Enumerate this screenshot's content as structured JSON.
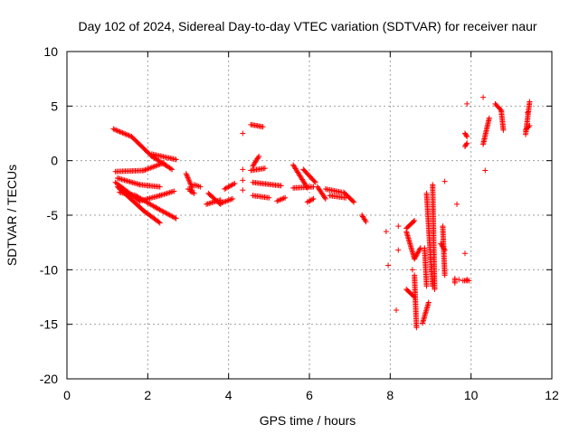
{
  "chart_data": {
    "type": "scatter",
    "title": "Day 102 of 2024, Sidereal Day-to-day VTEC variation (SDTVAR) for receiver naur",
    "xlabel": "GPS time / hours",
    "ylabel": "SDTVAR / TECUs",
    "xlim": [
      0,
      12
    ],
    "ylim": [
      -20,
      10
    ],
    "xticks": [
      "0",
      "2",
      "4",
      "6",
      "8",
      "10",
      "12"
    ],
    "yticks": [
      "-20",
      "-15",
      "-10",
      "-5",
      "0",
      "5",
      "10"
    ],
    "grid": true,
    "marker": "+",
    "color": "#ff0000",
    "series_segments": [
      {
        "x0": 1.15,
        "y0": 2.9,
        "x1": 1.6,
        "y1": 2.2
      },
      {
        "x0": 1.6,
        "y0": 2.2,
        "x1": 2.1,
        "y1": 0.4
      },
      {
        "x0": 2.1,
        "y0": 0.4,
        "x1": 2.6,
        "y1": -0.8
      },
      {
        "x0": 2.1,
        "y0": 0.6,
        "x1": 2.7,
        "y1": 0.1
      },
      {
        "x0": 1.2,
        "y0": -1.0,
        "x1": 1.9,
        "y1": -0.9
      },
      {
        "x0": 1.9,
        "y0": -0.9,
        "x1": 2.4,
        "y1": -0.2
      },
      {
        "x0": 1.25,
        "y0": -1.6,
        "x1": 1.8,
        "y1": -2.2
      },
      {
        "x0": 1.8,
        "y0": -2.2,
        "x1": 2.3,
        "y1": -2.4
      },
      {
        "x0": 1.2,
        "y0": -2.0,
        "x1": 1.8,
        "y1": -3.7
      },
      {
        "x0": 1.8,
        "y0": -3.7,
        "x1": 2.3,
        "y1": -3.2
      },
      {
        "x0": 2.3,
        "y0": -3.2,
        "x1": 2.65,
        "y1": -2.8
      },
      {
        "x0": 1.25,
        "y0": -2.4,
        "x1": 1.9,
        "y1": -4.6
      },
      {
        "x0": 1.9,
        "y0": -4.6,
        "x1": 2.3,
        "y1": -5.7
      },
      {
        "x0": 1.3,
        "y0": -2.9,
        "x1": 1.7,
        "y1": -3.2
      },
      {
        "x0": 1.7,
        "y0": -3.2,
        "x1": 2.2,
        "y1": -4.3
      },
      {
        "x0": 2.2,
        "y0": -4.3,
        "x1": 2.7,
        "y1": -5.3
      },
      {
        "x0": 2.95,
        "y0": -1.2,
        "x1": 3.1,
        "y1": -2.5
      },
      {
        "x0": 3.0,
        "y0": -2.6,
        "x1": 3.1,
        "y1": -2.7
      },
      {
        "x0": 3.15,
        "y0": -2.2,
        "x1": 3.3,
        "y1": -2.4
      },
      {
        "x0": 3.05,
        "y0": -2.8,
        "x1": 3.15,
        "y1": -3.0
      },
      {
        "x0": 3.5,
        "y0": -3.0,
        "x1": 3.8,
        "y1": -4.0
      },
      {
        "x0": 3.45,
        "y0": -4.0,
        "x1": 3.8,
        "y1": -3.6
      },
      {
        "x0": 3.9,
        "y0": -2.6,
        "x1": 4.15,
        "y1": -2.1
      },
      {
        "x0": 3.8,
        "y0": -3.9,
        "x1": 4.1,
        "y1": -3.5
      },
      {
        "x0": 4.55,
        "y0": 3.3,
        "x1": 4.85,
        "y1": 3.1
      },
      {
        "x0": 4.55,
        "y0": -0.9,
        "x1": 4.9,
        "y1": -0.7
      },
      {
        "x0": 4.6,
        "y0": -0.5,
        "x1": 4.75,
        "y1": 0.4
      },
      {
        "x0": 4.6,
        "y0": -3.2,
        "x1": 5.0,
        "y1": -3.4
      },
      {
        "x0": 4.6,
        "y0": -2.0,
        "x1": 5.3,
        "y1": -2.3
      },
      {
        "x0": 5.2,
        "y0": -3.7,
        "x1": 5.4,
        "y1": -3.4
      },
      {
        "x0": 5.6,
        "y0": -0.4,
        "x1": 5.95,
        "y1": -2.5
      },
      {
        "x0": 5.85,
        "y0": -0.8,
        "x1": 6.15,
        "y1": -2.0
      },
      {
        "x0": 5.95,
        "y0": -3.8,
        "x1": 6.1,
        "y1": -3.5
      },
      {
        "x0": 5.6,
        "y0": -2.5,
        "x1": 6.1,
        "y1": -2.4
      },
      {
        "x0": 6.2,
        "y0": -2.4,
        "x1": 6.4,
        "y1": -3.5
      },
      {
        "x0": 6.4,
        "y0": -2.6,
        "x1": 6.8,
        "y1": -2.9
      },
      {
        "x0": 6.5,
        "y0": -3.2,
        "x1": 6.9,
        "y1": -3.4
      },
      {
        "x0": 6.85,
        "y0": -2.9,
        "x1": 7.1,
        "y1": -3.8
      },
      {
        "x0": 7.3,
        "y0": -5.0,
        "x1": 7.4,
        "y1": -5.6
      },
      {
        "x0": 8.4,
        "y0": -6.2,
        "x1": 8.6,
        "y1": -5.5
      },
      {
        "x0": 8.4,
        "y0": -6.5,
        "x1": 8.6,
        "y1": -9.0
      },
      {
        "x0": 8.6,
        "y0": -9.0,
        "x1": 8.75,
        "y1": -8.0
      },
      {
        "x0": 8.4,
        "y0": -11.8,
        "x1": 8.6,
        "y1": -12.5
      },
      {
        "x0": 8.6,
        "y0": -10.5,
        "x1": 8.65,
        "y1": -15.3
      },
      {
        "x0": 8.8,
        "y0": -14.9,
        "x1": 8.95,
        "y1": -13.0
      },
      {
        "x0": 8.85,
        "y0": -8.0,
        "x1": 8.9,
        "y1": -11.5
      },
      {
        "x0": 8.9,
        "y0": -3.0,
        "x1": 9.0,
        "y1": -9.0
      },
      {
        "x0": 9.0,
        "y0": -9.0,
        "x1": 9.05,
        "y1": -11.5
      },
      {
        "x0": 9.05,
        "y0": -2.2,
        "x1": 9.1,
        "y1": -11.8
      },
      {
        "x0": 9.3,
        "y0": -6.0,
        "x1": 9.35,
        "y1": -10.5
      },
      {
        "x0": 9.25,
        "y0": -7.6,
        "x1": 9.35,
        "y1": -8.2
      },
      {
        "x0": 9.6,
        "y0": -10.8,
        "x1": 9.6,
        "y1": -11.2
      },
      {
        "x0": 9.8,
        "y0": -11.0,
        "x1": 9.95,
        "y1": -11.0
      },
      {
        "x0": 9.85,
        "y0": 2.5,
        "x1": 9.9,
        "y1": 2.2
      },
      {
        "x0": 9.85,
        "y0": 1.3,
        "x1": 9.9,
        "y1": 1.6
      },
      {
        "x0": 10.3,
        "y0": 1.5,
        "x1": 10.45,
        "y1": 3.9
      },
      {
        "x0": 10.6,
        "y0": 5.2,
        "x1": 10.75,
        "y1": 4.6
      },
      {
        "x0": 10.75,
        "y0": 4.5,
        "x1": 10.8,
        "y1": 2.8
      },
      {
        "x0": 11.35,
        "y0": 2.4,
        "x1": 11.45,
        "y1": 5.4
      },
      {
        "x0": 11.35,
        "y0": 2.8,
        "x1": 11.45,
        "y1": 3.2
      }
    ],
    "isolated_points": [
      {
        "x": 4.35,
        "y": 2.5
      },
      {
        "x": 4.35,
        "y": -0.8
      },
      {
        "x": 4.35,
        "y": -1.8
      },
      {
        "x": 4.35,
        "y": -2.7
      },
      {
        "x": 7.9,
        "y": -6.5
      },
      {
        "x": 7.95,
        "y": -9.6
      },
      {
        "x": 8.2,
        "y": -6.0
      },
      {
        "x": 8.2,
        "y": -8.2
      },
      {
        "x": 8.15,
        "y": -13.7
      },
      {
        "x": 8.55,
        "y": -10.0
      },
      {
        "x": 9.35,
        "y": -1.9
      },
      {
        "x": 9.65,
        "y": -4.0
      },
      {
        "x": 9.7,
        "y": -10.9
      },
      {
        "x": 9.85,
        "y": -8.5
      },
      {
        "x": 9.9,
        "y": 5.2
      },
      {
        "x": 9.9,
        "y": -10.9
      },
      {
        "x": 10.3,
        "y": 5.8
      },
      {
        "x": 10.35,
        "y": -0.9
      },
      {
        "x": 11.4,
        "y": 4.4
      }
    ]
  }
}
